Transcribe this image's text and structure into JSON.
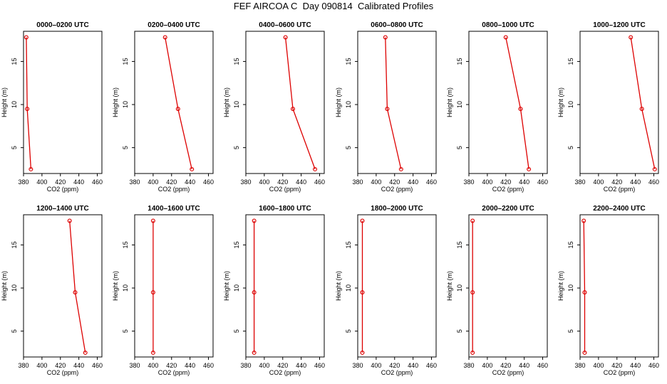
{
  "figure": {
    "title": "FEF AIRCOA C  Day 090814  Calibrated Profiles"
  },
  "style": {
    "line_color": "#dd0000",
    "marker_color": "#dd0000",
    "frame_color": "#000000"
  },
  "chart_data": [
    {
      "type": "line",
      "title": "0000–0200 UTC",
      "xlabel": "CO2 (ppm)",
      "ylabel": "Height (m)",
      "xlim": [
        380,
        465
      ],
      "ylim": [
        2,
        18.5
      ],
      "xticks": [
        "380",
        "400",
        "420",
        "440",
        "460"
      ],
      "yticks": [
        "5",
        "10",
        "15"
      ],
      "series": [
        {
          "x": [
            383,
            384,
            388
          ],
          "y": [
            17.8,
            9.5,
            2.5
          ]
        }
      ]
    },
    {
      "type": "line",
      "title": "0200–0400 UTC",
      "xlabel": "CO2 (ppm)",
      "ylabel": "Height (m)",
      "xlim": [
        380,
        465
      ],
      "ylim": [
        2,
        18.5
      ],
      "xticks": [
        "380",
        "400",
        "420",
        "440",
        "460"
      ],
      "yticks": [
        "5",
        "10",
        "15"
      ],
      "series": [
        {
          "x": [
            413,
            427,
            442
          ],
          "y": [
            17.8,
            9.5,
            2.5
          ]
        }
      ]
    },
    {
      "type": "line",
      "title": "0400–0600 UTC",
      "xlabel": "CO2 (ppm)",
      "ylabel": "Height (m)",
      "xlim": [
        380,
        465
      ],
      "ylim": [
        2,
        18.5
      ],
      "xticks": [
        "380",
        "400",
        "420",
        "440",
        "460"
      ],
      "yticks": [
        "5",
        "10",
        "15"
      ],
      "series": [
        {
          "x": [
            423,
            431,
            455
          ],
          "y": [
            17.8,
            9.5,
            2.5
          ]
        }
      ]
    },
    {
      "type": "line",
      "title": "0600–0800 UTC",
      "xlabel": "CO2 (ppm)",
      "ylabel": "Height (m)",
      "xlim": [
        380,
        465
      ],
      "ylim": [
        2,
        18.5
      ],
      "xticks": [
        "380",
        "400",
        "420",
        "440",
        "460"
      ],
      "yticks": [
        "5",
        "10",
        "15"
      ],
      "series": [
        {
          "x": [
            410,
            412,
            427
          ],
          "y": [
            17.8,
            9.5,
            2.5
          ]
        }
      ]
    },
    {
      "type": "line",
      "title": "0800–1000 UTC",
      "xlabel": "CO2 (ppm)",
      "ylabel": "Height (m)",
      "xlim": [
        380,
        465
      ],
      "ylim": [
        2,
        18.5
      ],
      "xticks": [
        "380",
        "400",
        "420",
        "440",
        "460"
      ],
      "yticks": [
        "5",
        "10",
        "15"
      ],
      "series": [
        {
          "x": [
            420,
            436,
            445
          ],
          "y": [
            17.8,
            9.5,
            2.5
          ]
        }
      ]
    },
    {
      "type": "line",
      "title": "1000–1200 UTC",
      "xlabel": "CO2 (ppm)",
      "ylabel": "Height (m)",
      "xlim": [
        380,
        465
      ],
      "ylim": [
        2,
        18.5
      ],
      "xticks": [
        "380",
        "400",
        "420",
        "440",
        "460"
      ],
      "yticks": [
        "5",
        "10",
        "15"
      ],
      "series": [
        {
          "x": [
            435,
            447,
            461
          ],
          "y": [
            17.8,
            9.5,
            2.5
          ]
        }
      ]
    },
    {
      "type": "line",
      "title": "1200–1400 UTC",
      "xlabel": "CO2 (ppm)",
      "ylabel": "Height (m)",
      "xlim": [
        380,
        465
      ],
      "ylim": [
        2,
        18.5
      ],
      "xticks": [
        "380",
        "400",
        "420",
        "440",
        "460"
      ],
      "yticks": [
        "5",
        "10",
        "15"
      ],
      "series": [
        {
          "x": [
            430,
            436,
            447
          ],
          "y": [
            17.8,
            9.5,
            2.5
          ]
        }
      ]
    },
    {
      "type": "line",
      "title": "1400–1600 UTC",
      "xlabel": "CO2 (ppm)",
      "ylabel": "Height (m)",
      "xlim": [
        380,
        465
      ],
      "ylim": [
        2,
        18.5
      ],
      "xticks": [
        "380",
        "400",
        "420",
        "440",
        "460"
      ],
      "yticks": [
        "5",
        "10",
        "15"
      ],
      "series": [
        {
          "x": [
            400,
            400,
            400
          ],
          "y": [
            17.8,
            9.5,
            2.5
          ]
        }
      ]
    },
    {
      "type": "line",
      "title": "1600–1800 UTC",
      "xlabel": "CO2 (ppm)",
      "ylabel": "Height (m)",
      "xlim": [
        380,
        465
      ],
      "ylim": [
        2,
        18.5
      ],
      "xticks": [
        "380",
        "400",
        "420",
        "440",
        "460"
      ],
      "yticks": [
        "5",
        "10",
        "15"
      ],
      "series": [
        {
          "x": [
            389,
            389,
            389
          ],
          "y": [
            17.8,
            9.5,
            2.5
          ]
        }
      ]
    },
    {
      "type": "line",
      "title": "1800–2000 UTC",
      "xlabel": "CO2 (ppm)",
      "ylabel": "Height (m)",
      "xlim": [
        380,
        465
      ],
      "ylim": [
        2,
        18.5
      ],
      "xticks": [
        "380",
        "400",
        "420",
        "440",
        "460"
      ],
      "yticks": [
        "5",
        "10",
        "15"
      ],
      "series": [
        {
          "x": [
            385,
            385,
            385
          ],
          "y": [
            17.8,
            9.5,
            2.5
          ]
        }
      ]
    },
    {
      "type": "line",
      "title": "2000–2200 UTC",
      "xlabel": "CO2 (ppm)",
      "ylabel": "Height (m)",
      "xlim": [
        380,
        465
      ],
      "ylim": [
        2,
        18.5
      ],
      "xticks": [
        "380",
        "400",
        "420",
        "440",
        "460"
      ],
      "yticks": [
        "5",
        "10",
        "15"
      ],
      "series": [
        {
          "x": [
            384,
            384,
            384
          ],
          "y": [
            17.8,
            9.5,
            2.5
          ]
        }
      ]
    },
    {
      "type": "line",
      "title": "2200–2400 UTC",
      "xlabel": "CO2 (ppm)",
      "ylabel": "Height (m)",
      "xlim": [
        380,
        465
      ],
      "ylim": [
        2,
        18.5
      ],
      "xticks": [
        "380",
        "400",
        "420",
        "440",
        "460"
      ],
      "yticks": [
        "5",
        "10",
        "15"
      ],
      "series": [
        {
          "x": [
            384,
            385,
            385
          ],
          "y": [
            17.8,
            9.5,
            2.5
          ]
        }
      ]
    }
  ]
}
